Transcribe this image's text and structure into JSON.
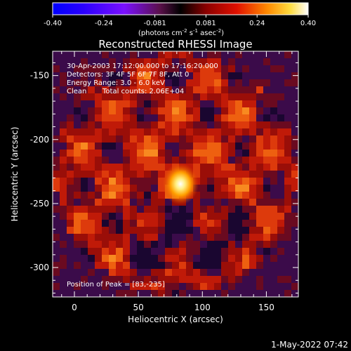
{
  "chart_data": {
    "type": "heatmap",
    "title": "Reconstructed RHESSI Image",
    "xlabel": "Heliocentric X (arcsec)",
    "ylabel": "Heliocentric Y (arcsec)",
    "xlim": [
      -17,
      175
    ],
    "ylim": [
      -323,
      -131
    ],
    "xticks": [
      0,
      50,
      100,
      150
    ],
    "yticks": [
      -150,
      -200,
      -250,
      -300
    ],
    "colorbar": {
      "ticks": [
        "-0.40",
        "-0.24",
        "-0.081",
        "0.081",
        "0.24",
        "0.40"
      ],
      "range": [
        -0.4,
        0.4
      ],
      "units_main": "(photons cm",
      "units_exp1": "-2",
      "units_mid1": " s",
      "units_exp2": "-1",
      "units_mid2": " asec",
      "units_exp3": "-2",
      "units_end": ")"
    },
    "annotations": {
      "time": "30-Apr-2003 17:12:00.000 to 17:16:20.000",
      "detectors": "Detectors: 3F 4F 5F 6F 7F 8F, Att 0",
      "energy": "Energy Range: 3.0 - 6.0 keV",
      "clean": "Clean",
      "counts": "Total counts: 2.06E+04",
      "peak": "Position of Peak = [83,-235]"
    },
    "peak": {
      "x": 83,
      "y": -235
    },
    "timestamp": "1-May-2022 07:42"
  }
}
